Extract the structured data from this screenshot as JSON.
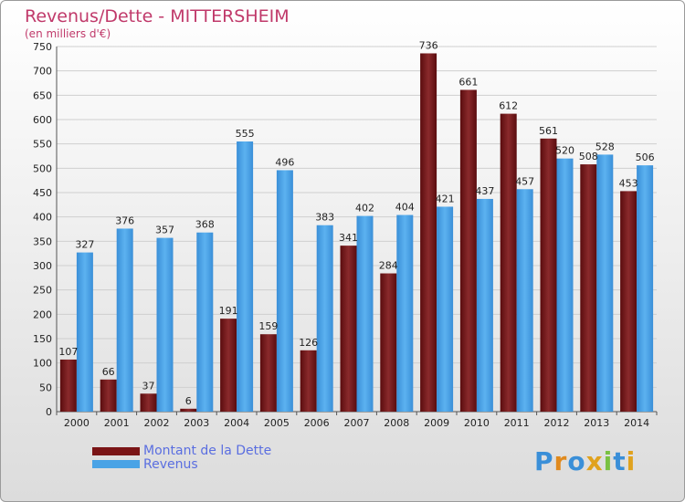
{
  "chart_data": {
    "type": "bar",
    "title": "Revenus/Dette - MITTERSHEIM",
    "subtitle": "(en milliers d'€)",
    "categories": [
      "2000",
      "2001",
      "2002",
      "2003",
      "2004",
      "2005",
      "2006",
      "2007",
      "2008",
      "2009",
      "2010",
      "2011",
      "2012",
      "2013",
      "2014"
    ],
    "series": [
      {
        "name": "Montant de la Dette",
        "color": "#7a1416",
        "values": [
          107,
          66,
          37,
          6,
          191,
          159,
          126,
          341,
          284,
          736,
          661,
          612,
          561,
          508,
          453
        ]
      },
      {
        "name": "Revenus",
        "color": "#4aa3e6",
        "values": [
          327,
          376,
          357,
          368,
          555,
          496,
          383,
          402,
          404,
          421,
          437,
          457,
          520,
          528,
          506
        ]
      }
    ],
    "y_ticks": [
      0,
      50,
      100,
      150,
      200,
      250,
      300,
      350,
      400,
      450,
      500,
      550,
      600,
      650,
      700,
      750
    ],
    "ylim": [
      0,
      750
    ],
    "grid": true,
    "legend_position": "bottom-left"
  },
  "logo": {
    "letters": [
      "P",
      "r",
      "o",
      "x",
      "i",
      "t",
      "i"
    ],
    "colors": [
      "#3a8fd8",
      "#e08a1e",
      "#3a8fd8",
      "#e0a21e",
      "#7ac142",
      "#3a8fd8",
      "#e0a21e"
    ]
  }
}
